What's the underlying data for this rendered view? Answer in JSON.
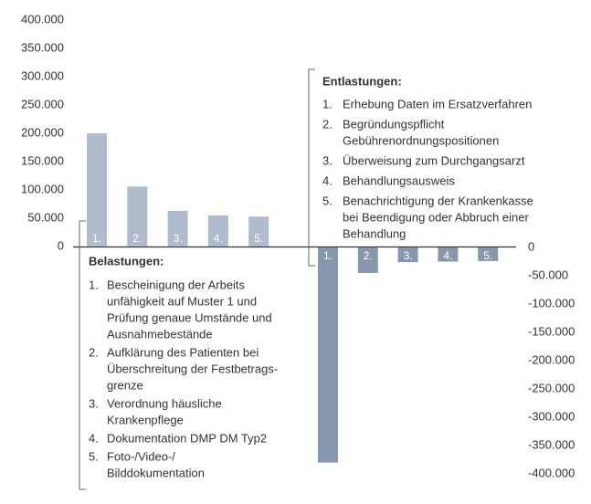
{
  "chart_data": [
    {
      "type": "bar",
      "title": "Belastungen:",
      "color": "#afbccd",
      "categories": [
        "1.",
        "2.",
        "3.",
        "4.",
        "5."
      ],
      "values": [
        200000,
        106000,
        63000,
        55000,
        53000
      ],
      "ylim": [
        0,
        400000
      ],
      "yticks": [
        0,
        {
          "value": 50000,
          "label": "50.000"
        },
        {
          "value": 100000,
          "label": "100.000"
        },
        {
          "value": 150000,
          "label": "150.000"
        },
        {
          "value": 200000,
          "label": "200.000"
        },
        {
          "value": 250000,
          "label": "250.000"
        },
        {
          "value": 300000,
          "label": "300.000"
        },
        {
          "value": 350000,
          "label": "350.000"
        },
        {
          "value": 400000,
          "label": "400.000"
        }
      ],
      "items": [
        [
          "Bescheinigung der Arbeits",
          "unfähigkeit auf Muster 1 und",
          "Prüfung genaue Umstände und",
          "Ausnahmebestände"
        ],
        [
          "Aufklärung des Patienten bei",
          "Überschreitung der Festbetrags-",
          "grenze"
        ],
        [
          "Verordnung häusliche",
          "Krankenpflege"
        ],
        [
          "Dokumentation DMP DM Typ2"
        ],
        [
          "Foto-/Video-/",
          "Bilddokumentation"
        ]
      ]
    },
    {
      "type": "bar",
      "title": "Entlastungen:",
      "color": "#8797ad",
      "categories": [
        "1.",
        "2.",
        "3.",
        "4.",
        "5."
      ],
      "values": [
        -380000,
        -45000,
        -26000,
        -25000,
        -24000
      ],
      "ylim": [
        -400000,
        0
      ],
      "yticks": [
        0,
        {
          "value": -50000,
          "label": "-50.000"
        },
        {
          "value": -100000,
          "label": "-100.000"
        },
        {
          "value": -150000,
          "label": "-150.000"
        },
        {
          "value": -200000,
          "label": "-200.000"
        },
        {
          "value": -250000,
          "label": "-250.000"
        },
        {
          "value": -300000,
          "label": "-300.000"
        },
        {
          "value": -350000,
          "label": "-350.000"
        },
        {
          "value": -400000,
          "label": "-400.000"
        }
      ],
      "items": [
        [
          "Erhebung Daten im Ersatzverfahren"
        ],
        [
          "Begründungspflicht",
          "Gebührenordnungspositionen"
        ],
        [
          "Überweisung zum Durchgangsarzt"
        ],
        [
          "Behandlungsausweis"
        ],
        [
          "Benachrichtigung der Krankenkasse",
          "bei Beendigung oder Abbruch einer",
          "Behandlung"
        ]
      ]
    }
  ]
}
